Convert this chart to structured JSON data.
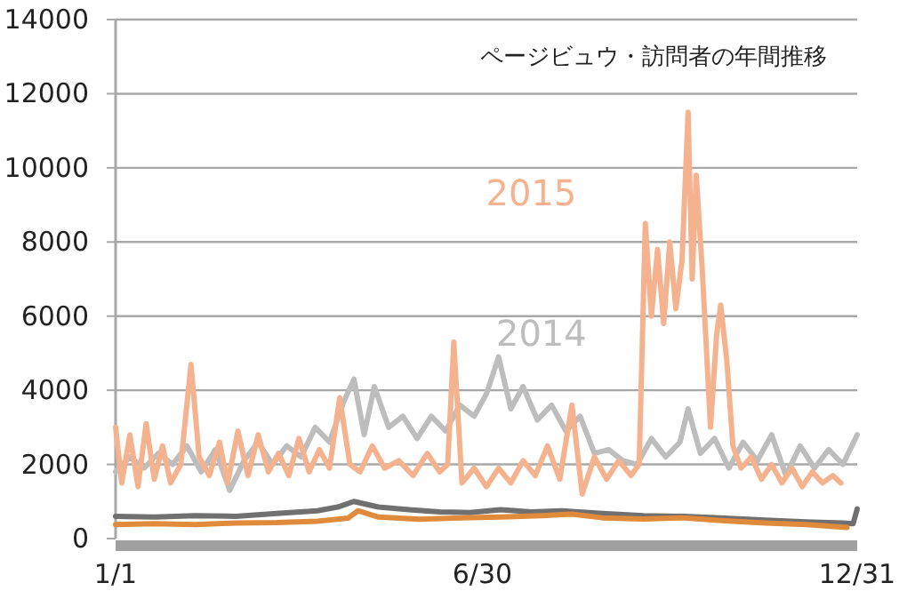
{
  "chart_data": {
    "type": "line",
    "title": "ページビュウ・訪問者の年間推移",
    "xlim": [
      "--01-01",
      "--12-31"
    ],
    "xticks": [
      {
        "value": "--01-01",
        "label": "1/1"
      },
      {
        "value": "--06-30",
        "label": "6/30"
      },
      {
        "value": "--12-31",
        "label": "12/31"
      }
    ],
    "ylim": [
      0,
      14000
    ],
    "yticks": [
      0,
      2000,
      4000,
      6000,
      8000,
      10000,
      12000,
      14000
    ],
    "grid": "y",
    "series": [
      {
        "name": "2014",
        "color": "#bdbdbd",
        "x": [
          "--01-01",
          "--01-08",
          "--01-15",
          "--01-22",
          "--01-29",
          "--02-05",
          "--02-12",
          "--02-19",
          "--02-26",
          "--03-05",
          "--03-12",
          "--03-19",
          "--03-26",
          "--04-02",
          "--04-09",
          "--04-16",
          "--04-23",
          "--04-28",
          "--05-03",
          "--05-08",
          "--05-15",
          "--05-22",
          "--05-29",
          "--06-05",
          "--06-12",
          "--06-19",
          "--06-26",
          "--07-02",
          "--07-08",
          "--07-14",
          "--07-20",
          "--07-27",
          "--08-03",
          "--08-10",
          "--08-17",
          "--08-24",
          "--08-31",
          "--09-07",
          "--09-14",
          "--09-21",
          "--09-28",
          "--10-05",
          "--10-09",
          "--10-15",
          "--10-22",
          "--10-29",
          "--11-05",
          "--11-12",
          "--11-19",
          "--11-26",
          "--12-03",
          "--12-10",
          "--12-17",
          "--12-24",
          "--12-31"
        ],
        "values": [
          1800,
          2200,
          1900,
          2300,
          2000,
          2500,
          1800,
          2400,
          1300,
          2100,
          2600,
          2000,
          2500,
          2200,
          3000,
          2600,
          3700,
          4300,
          2800,
          4100,
          3000,
          3300,
          2700,
          3300,
          2900,
          3600,
          3300,
          3900,
          4900,
          3500,
          4100,
          3200,
          3600,
          2900,
          3300,
          2300,
          2400,
          2100,
          2000,
          2700,
          2200,
          2600,
          3500,
          2300,
          2700,
          1900,
          2600,
          2100,
          2800,
          1700,
          2500,
          1900,
          2400,
          2000,
          2800
        ]
      },
      {
        "name": "2015",
        "color": "#f4b38e",
        "x": [
          "--01-01",
          "--01-04",
          "--01-08",
          "--01-12",
          "--01-16",
          "--01-20",
          "--01-24",
          "--01-28",
          "--02-02",
          "--02-07",
          "--02-11",
          "--02-16",
          "--02-21",
          "--02-25",
          "--03-02",
          "--03-07",
          "--03-12",
          "--03-17",
          "--03-22",
          "--03-27",
          "--04-01",
          "--04-06",
          "--04-11",
          "--04-16",
          "--04-21",
          "--04-26",
          "--05-01",
          "--05-07",
          "--05-13",
          "--05-20",
          "--05-27",
          "--06-03",
          "--06-09",
          "--06-13",
          "--06-16",
          "--06-20",
          "--06-26",
          "--07-02",
          "--07-08",
          "--07-14",
          "--07-20",
          "--07-26",
          "--08-01",
          "--08-07",
          "--08-13",
          "--08-18",
          "--08-24",
          "--08-30",
          "--09-05",
          "--09-11",
          "--09-15",
          "--09-18",
          "--09-21",
          "--09-24",
          "--09-27",
          "--09-30",
          "--10-03",
          "--10-06",
          "--10-09",
          "--10-11",
          "--10-13",
          "--10-16",
          "--10-20",
          "--10-23",
          "--10-25",
          "--10-28",
          "--10-31",
          "--11-04",
          "--11-09",
          "--11-14",
          "--11-19",
          "--11-24",
          "--11-29",
          "--12-04",
          "--12-09",
          "--12-14",
          "--12-19",
          "--12-23"
        ],
        "values": [
          3000,
          1500,
          2800,
          1400,
          3100,
          1600,
          2500,
          1500,
          2000,
          4700,
          2200,
          1700,
          2600,
          1500,
          2900,
          1700,
          2800,
          1800,
          2300,
          1700,
          2700,
          1800,
          2400,
          1900,
          3800,
          2000,
          1800,
          2500,
          1900,
          2100,
          1700,
          2300,
          1800,
          2000,
          5300,
          1500,
          1900,
          1400,
          1900,
          1500,
          2100,
          1700,
          2500,
          1600,
          3600,
          1200,
          2200,
          1600,
          2100,
          1700,
          2000,
          8500,
          6000,
          7800,
          5800,
          8000,
          6200,
          7500,
          11500,
          7000,
          9800,
          7200,
          3000,
          5500,
          6300,
          4800,
          2500,
          1900,
          2200,
          1600,
          2000,
          1500,
          1900,
          1400,
          1800,
          1500,
          1700,
          1500
        ]
      },
      {
        "color": "#707070",
        "x": [
          "--01-01",
          "--01-20",
          "--02-09",
          "--03-01",
          "--03-21",
          "--04-10",
          "--04-20",
          "--04-28",
          "--05-10",
          "--05-25",
          "--06-09",
          "--06-24",
          "--07-09",
          "--07-24",
          "--08-08",
          "--08-28",
          "--09-17",
          "--10-07",
          "--10-27",
          "--11-16",
          "--12-06",
          "--12-24",
          "--12-29",
          "--12-31"
        ],
        "values": [
          600,
          580,
          620,
          600,
          680,
          750,
          850,
          1000,
          850,
          780,
          720,
          700,
          780,
          720,
          750,
          680,
          620,
          600,
          550,
          500,
          450,
          420,
          400,
          800
        ]
      },
      {
        "color": "#e08a3c",
        "x": [
          "--01-01",
          "--01-20",
          "--02-09",
          "--03-01",
          "--03-21",
          "--04-10",
          "--04-25",
          "--04-30",
          "--05-10",
          "--05-30",
          "--06-19",
          "--07-09",
          "--07-29",
          "--08-13",
          "--08-28",
          "--09-17",
          "--10-07",
          "--10-27",
          "--11-16",
          "--12-06",
          "--12-26"
        ],
        "values": [
          380,
          400,
          380,
          420,
          430,
          470,
          550,
          750,
          580,
          520,
          560,
          580,
          620,
          660,
          560,
          530,
          560,
          480,
          420,
          380,
          300
        ]
      }
    ]
  }
}
